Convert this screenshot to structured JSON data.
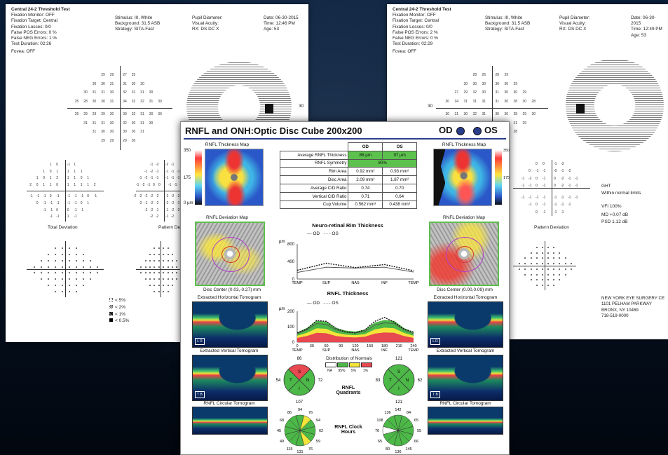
{
  "vf_left": {
    "title": "Central 24-2 Threshold Test",
    "col1": [
      "Fixation Monitor: OFF",
      "Fixation Target: Central",
      "Fixation Losses: 0/0",
      "False POS Errors: 0 %",
      "False NEG Errors: 1 %",
      "Test Duration: 02:26"
    ],
    "fovea": "Fovea: OFF",
    "col2": [
      "Stimulus: III, White",
      "Background: 31.5 ASB",
      "Strategy: SITA-Fast"
    ],
    "col3": [
      "Pupil Diameter:",
      "Visual Acuity:",
      "RX:  DS   DC X"
    ],
    "col4": [
      "Date: 06-30-2015",
      "Time: 12:46 PM",
      "Age: 53"
    ],
    "threshold_rows": [
      [
        "29",
        "29",
        "27",
        "25"
      ],
      [
        "30",
        "30",
        "31",
        "31",
        "30",
        "30"
      ],
      [
        "30",
        "31",
        "31",
        "30",
        "32",
        "31",
        "31",
        "30"
      ],
      [
        "25",
        "28",
        "30",
        "30",
        "31",
        "34",
        "32",
        "32",
        "31",
        "30"
      ],
      [
        "25",
        "29",
        "29",
        "29",
        "30",
        "30",
        "32",
        "31",
        "30",
        "30"
      ],
      [
        "31",
        "31",
        "31",
        "30",
        "32",
        "30",
        "31",
        "30"
      ],
      [
        "31",
        "30",
        "30",
        "30",
        "30",
        "31"
      ],
      [
        "29",
        "29",
        "29",
        "30"
      ]
    ],
    "axis_label": "30",
    "total_dev_rows": [
      [
        "1",
        "0",
        "-1",
        "1"
      ],
      [
        "1",
        "0",
        "1",
        "1",
        "1",
        "1"
      ],
      [
        "1",
        "0",
        "1",
        "2",
        "1",
        "1",
        "0",
        "1"
      ],
      [
        "2",
        "0",
        "1",
        "1",
        "0",
        "1",
        "1",
        "1",
        "1",
        "2"
      ],
      [
        "-1",
        "-1",
        "-1",
        "0",
        "-1",
        "-1",
        "-1",
        "-1",
        "0",
        "-1"
      ],
      [
        "0",
        "-1",
        "-1",
        "-1",
        "-1",
        "-1",
        "0",
        "1"
      ],
      [
        "-1",
        "-1",
        "0",
        "0",
        "-1",
        "-1"
      ],
      [
        "-1",
        "-1",
        "1",
        "-1"
      ]
    ],
    "pattern_dev_rows": [
      [
        "-1",
        "-2",
        "-2",
        "-1"
      ],
      [
        "-1",
        "-2",
        "-1",
        "-1",
        "-1",
        "-1"
      ],
      [
        "-1",
        "-2",
        "-1",
        "-1",
        "-1",
        "-1",
        "-1",
        "-1"
      ],
      [
        "-1",
        "-2",
        "-1",
        "0",
        "0",
        "-1",
        "-1",
        "-1",
        "-1"
      ],
      [
        "-2",
        "-2",
        "-2",
        "-2",
        "-2",
        "-2",
        "-2",
        "-2",
        "-1",
        "-1"
      ],
      [
        "-2",
        "-1",
        "-2",
        "-2",
        "-2",
        "-2",
        "-1",
        "-1"
      ],
      [
        "-2",
        "-2",
        "-1",
        "-1",
        "-2",
        "-2"
      ],
      [
        "-2",
        "-2",
        "-1",
        "-2"
      ]
    ],
    "total_dev_label": "Total Deviation",
    "pattern_dev_label": "Pattern Deviation",
    "legend": [
      "< 5%",
      "< 2%",
      "< 1%",
      "< 0.5%"
    ]
  },
  "vf_right": {
    "title": "Central 24-2 Threshold Test",
    "col1": [
      "Fixation Monitor: OFF",
      "Fixation Target: Central",
      "Fixation Losses: 0/0",
      "False POS Errors: 2 %",
      "False NEG Errors: 0 %",
      "Test Duration: 02:29"
    ],
    "fovea": "Fovea: OFF",
    "col2": [
      "Stimulus: III, White",
      "Background: 31.5 ASB",
      "Strategy: SITA-Fast"
    ],
    "col3": [
      "Pupil Diameter:",
      "Visual Acuity:",
      "RX:  DS   DC X"
    ],
    "col4": [
      "Date: 06-30-2015",
      "Time: 12:49 PM",
      "Age: 53"
    ],
    "threshold_rows": [
      [
        "28",
        "26",
        "28",
        "29"
      ],
      [
        "30",
        "30",
        "30",
        "30",
        "30",
        "29"
      ],
      [
        "27",
        "29",
        "32",
        "30",
        "31",
        "30",
        "30",
        "29"
      ],
      [
        "30",
        "34",
        "31",
        "31",
        "31",
        "31",
        "30",
        "28",
        "30",
        "28"
      ],
      [
        "30",
        "31",
        "30",
        "32",
        "31",
        "30",
        "30",
        "28",
        "29",
        "30"
      ],
      [
        "30",
        "31",
        "31",
        "30",
        "30",
        "31",
        "31",
        "29"
      ],
      [
        "30",
        "30",
        "31",
        "28",
        "31",
        "28"
      ],
      [
        "29",
        "28",
        "28",
        "28"
      ]
    ],
    "axis_label": "30",
    "pattern_dev_rows": [
      [
        "0",
        "0",
        "-1",
        "-3"
      ],
      [
        "0",
        "-1",
        "-1",
        "-0",
        "-1",
        "-2"
      ],
      [
        "-1",
        "-2",
        "0",
        "-1",
        "0",
        "-2",
        "-1",
        "-1"
      ],
      [
        "-1",
        "-1",
        "0",
        "-1",
        "0",
        "-2",
        "-1",
        "-1"
      ],
      [
        "-1",
        "-1",
        "-1",
        "-1",
        "-1",
        "-1",
        "-1",
        "-1"
      ],
      [
        "-1",
        "0",
        "-1",
        "-1",
        "-1",
        "-1"
      ],
      [
        "0",
        "-1",
        "-1",
        "-1"
      ]
    ],
    "pattern_dev_label": "Pattern Deviation",
    "ght_title": "GHT",
    "ght_value": "Within normal limits",
    "vfi": "VFI   100%",
    "md": "MD    +0.07 dB",
    "psd": "PSD   1.12 dB",
    "address": [
      "NEW YORK EYE SURGERY CE",
      "1101 PELHAM PARKWAY",
      "BRONX, NY 10469",
      "718-519-0000"
    ]
  },
  "oct": {
    "title": "RNFL and ONH:Optic Disc Cube 200x200",
    "od_label": "OD",
    "os_label": "OS",
    "thickness_map_label": "RNFL Thickness Map",
    "scale_max": "350",
    "scale_mid": "175",
    "scale_min": "0 µm",
    "table": {
      "head": [
        "",
        "OD",
        "OS"
      ],
      "rows": [
        [
          "Average RNFL Thickness",
          "86 µm",
          "97 µm"
        ],
        [
          "RNFL Symmetry",
          "80%"
        ],
        [
          "Rim Area",
          "0.92 mm²",
          "0.93 mm²"
        ],
        [
          "Disc Area",
          "2.09 mm²",
          "1.87 mm²"
        ],
        [
          "Average C/D Ratio",
          "0.74",
          "0.70"
        ],
        [
          "Vertical C/D Ratio",
          "0.71",
          "0.64"
        ],
        [
          "Cup Volume",
          "0.562 mm³",
          "0.438 mm³"
        ]
      ]
    },
    "deviation_map_label": "RNFL Deviation Map",
    "disc_center_od": "Disc Center (0.03,-0.27) mm",
    "disc_center_os": "Disc Center (0.00,0.09) mm",
    "horiz_tomo_label": "Extracted Horizontal Tomogram",
    "vert_tomo_label": "Extracted Vertical Tomogram",
    "circ_tomo_label": "RNFL Circular Tomogram",
    "tomo_tag_h": "L R",
    "tomo_tag_v": "T B",
    "rim_chart": {
      "title": "Neuro-retinal Rim Thickness",
      "unit": "µm",
      "legend_od": "OD",
      "legend_os": "OS",
      "yticks": [
        "800",
        "400",
        "0"
      ],
      "xticks": [
        "TEMP",
        "SUP",
        "NAS",
        "INF",
        "TEMP"
      ]
    },
    "rnfl_chart": {
      "title": "RNFL Thickness",
      "unit": "µm",
      "legend_od": "OD",
      "legend_os": "OS",
      "yticks": [
        "200",
        "100",
        "0"
      ],
      "xticks": [
        "0",
        "30",
        "60",
        "90",
        "120",
        "150",
        "180",
        "210",
        "240"
      ],
      "xticks2": [
        "TEMP",
        "SUP",
        "NAS",
        "INF",
        "TEMP"
      ]
    },
    "distribution_title": "Distribution of Normals",
    "distribution": [
      "NA",
      "95%",
      "5%",
      "1%"
    ],
    "quadrants_title": "RNFL Quadrants",
    "clock_title": "RNFL Clock Hours",
    "od_quadrants": {
      "S": "86",
      "N": "72",
      "I": "107",
      "T": "54"
    },
    "os_quadrants": {
      "S": "121",
      "N": "62",
      "I": "121",
      "T": "83"
    },
    "od_clock": [
      "94",
      "76",
      "94",
      "62",
      "59",
      "76",
      "131",
      "115",
      "49",
      "45",
      "68",
      "86"
    ],
    "os_clock": [
      "142",
      "84",
      "65",
      "55",
      "66",
      "145",
      "136",
      "80",
      "65",
      "76",
      "108",
      "136"
    ]
  },
  "chart_data": [
    {
      "type": "line",
      "title": "Neuro-retinal Rim Thickness",
      "xlabel": "",
      "ylabel": "µm",
      "x": [
        "TEMP",
        "SUP",
        "NAS",
        "INF",
        "TEMP"
      ],
      "ylim": [
        0,
        800
      ],
      "series": [
        {
          "name": "OD",
          "values": [
            150,
            270,
            250,
            270,
            160
          ]
        },
        {
          "name": "OS",
          "values": [
            200,
            360,
            260,
            330,
            190
          ]
        }
      ]
    },
    {
      "type": "area",
      "title": "RNFL Thickness",
      "xlabel": "",
      "ylabel": "µm",
      "x": [
        0,
        20,
        40,
        60,
        80,
        100,
        120,
        140,
        160,
        180,
        200,
        220,
        240
      ],
      "ylim": [
        0,
        200
      ],
      "series": [
        {
          "name": "OD",
          "values": [
            55,
            80,
            120,
            115,
            80,
            65,
            60,
            70,
            110,
            125,
            120,
            80,
            55
          ]
        },
        {
          "name": "OS",
          "values": [
            60,
            85,
            140,
            135,
            90,
            65,
            60,
            80,
            135,
            160,
            130,
            85,
            65
          ]
        }
      ]
    }
  ]
}
